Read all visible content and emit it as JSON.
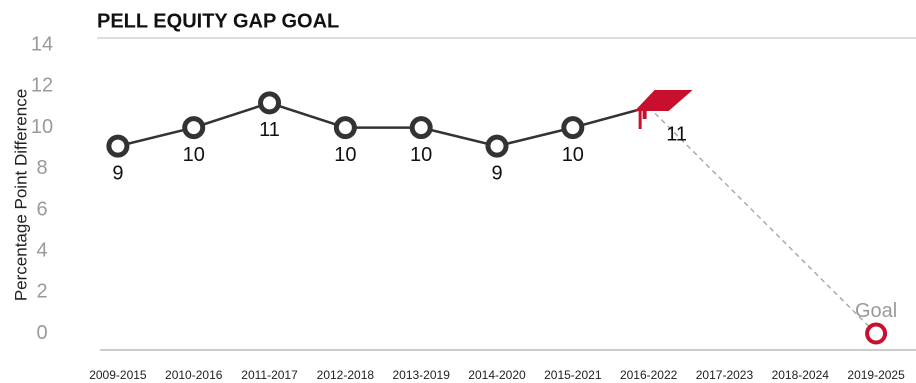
{
  "chart_data": {
    "type": "line",
    "title": "PELL EQUITY GAP GOAL",
    "y_label": "Percentage Point Difference",
    "categories": [
      "2009-2015",
      "2010-2016",
      "2011-2017",
      "2012-2018",
      "2013-2019",
      "2014-2020",
      "2015-2021",
      "2016-2022",
      "2017-2023",
      "2018-2024",
      "2019-2025"
    ],
    "series": [
      {
        "color": "#333333",
        "values": [
          9.1,
          10,
          11.2,
          10,
          10,
          9.1,
          10,
          11,
          null,
          null,
          null
        ],
        "value_labels": [
          "9",
          "10",
          "11",
          "10",
          "10",
          "9",
          "10",
          "11",
          null,
          null,
          null
        ]
      }
    ],
    "goal": {
      "label": "Goal",
      "value": 0,
      "color": "#c8102e"
    },
    "ylim": [
      -0.8,
      14.4
    ],
    "yticks": [
      0,
      2,
      4,
      6,
      8,
      10,
      12,
      14
    ]
  }
}
